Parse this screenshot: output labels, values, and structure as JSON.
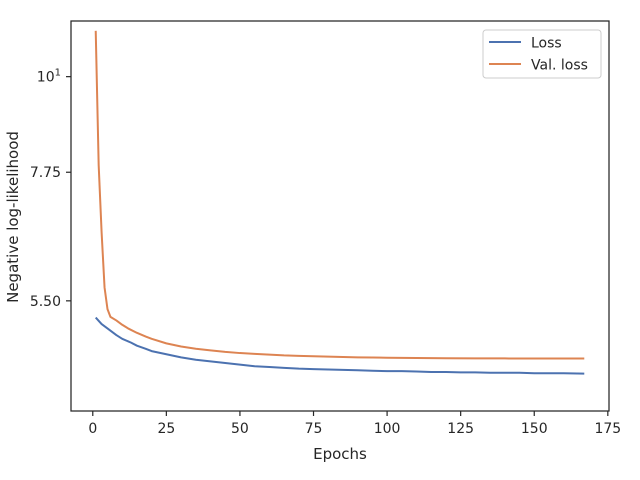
{
  "chart_data": {
    "type": "line",
    "xlabel": "Epochs",
    "ylabel": "Negative log-likelihood",
    "y_scale": "log",
    "xlim": [
      -7.4,
      175.4
    ],
    "ylim": [
      4.1,
      11.6
    ],
    "x_ticks": [
      {
        "value": 0,
        "label": "0"
      },
      {
        "value": 25,
        "label": "25"
      },
      {
        "value": 50,
        "label": "50"
      },
      {
        "value": 75,
        "label": "75"
      },
      {
        "value": 100,
        "label": "100"
      },
      {
        "value": 125,
        "label": "125"
      },
      {
        "value": 150,
        "label": "150"
      },
      {
        "value": 175,
        "label": "175"
      }
    ],
    "y_ticks": [
      {
        "value": 5.5,
        "label": "5.50",
        "sup": ""
      },
      {
        "value": 7.75,
        "label": "7.75",
        "sup": ""
      },
      {
        "value": 10,
        "label": "10",
        "sup": "1"
      }
    ],
    "grid": false,
    "legend": "top-right",
    "series": [
      {
        "name": "Loss",
        "color": "#4c72b0",
        "points": [
          [
            1,
            5.26
          ],
          [
            3,
            5.17
          ],
          [
            5,
            5.11
          ],
          [
            8,
            5.02
          ],
          [
            10,
            4.97
          ],
          [
            13,
            4.92
          ],
          [
            15,
            4.88
          ],
          [
            18,
            4.84
          ],
          [
            20,
            4.81
          ],
          [
            25,
            4.77
          ],
          [
            30,
            4.73
          ],
          [
            35,
            4.7
          ],
          [
            40,
            4.68
          ],
          [
            45,
            4.66
          ],
          [
            50,
            4.64
          ],
          [
            55,
            4.62
          ],
          [
            60,
            4.61
          ],
          [
            65,
            4.6
          ],
          [
            70,
            4.59
          ],
          [
            75,
            4.585
          ],
          [
            80,
            4.58
          ],
          [
            85,
            4.575
          ],
          [
            90,
            4.57
          ],
          [
            95,
            4.565
          ],
          [
            100,
            4.56
          ],
          [
            105,
            4.56
          ],
          [
            110,
            4.555
          ],
          [
            115,
            4.55
          ],
          [
            120,
            4.55
          ],
          [
            125,
            4.545
          ],
          [
            130,
            4.545
          ],
          [
            135,
            4.54
          ],
          [
            140,
            4.54
          ],
          [
            145,
            4.54
          ],
          [
            150,
            4.535
          ],
          [
            155,
            4.535
          ],
          [
            160,
            4.535
          ],
          [
            167,
            4.53
          ]
        ]
      },
      {
        "name": "Val. loss",
        "color": "#dd8452",
        "points": [
          [
            1,
            11.3
          ],
          [
            2,
            7.9
          ],
          [
            3,
            6.6
          ],
          [
            4,
            5.7
          ],
          [
            5,
            5.38
          ],
          [
            6,
            5.27
          ],
          [
            8,
            5.22
          ],
          [
            10,
            5.16
          ],
          [
            12,
            5.11
          ],
          [
            15,
            5.05
          ],
          [
            18,
            5.0
          ],
          [
            20,
            4.97
          ],
          [
            25,
            4.91
          ],
          [
            30,
            4.87
          ],
          [
            35,
            4.84
          ],
          [
            40,
            4.82
          ],
          [
            45,
            4.8
          ],
          [
            50,
            4.785
          ],
          [
            55,
            4.775
          ],
          [
            60,
            4.765
          ],
          [
            65,
            4.755
          ],
          [
            70,
            4.75
          ],
          [
            75,
            4.745
          ],
          [
            80,
            4.74
          ],
          [
            85,
            4.735
          ],
          [
            90,
            4.73
          ],
          [
            95,
            4.728
          ],
          [
            100,
            4.726
          ],
          [
            110,
            4.722
          ],
          [
            120,
            4.72
          ],
          [
            130,
            4.718
          ],
          [
            140,
            4.717
          ],
          [
            150,
            4.716
          ],
          [
            160,
            4.716
          ],
          [
            167,
            4.716
          ]
        ]
      }
    ]
  }
}
